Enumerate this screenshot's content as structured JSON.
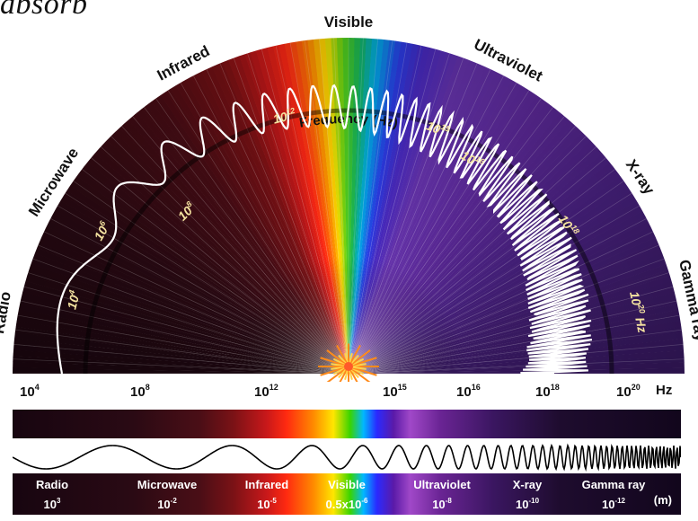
{
  "corner_text": "absorb",
  "arc": {
    "band_labels": [
      "Radio",
      "Microwave",
      "Infrared",
      "Visible",
      "Ultraviolet",
      "X-ray",
      "Gamma ray"
    ],
    "frequency_label": "Frequency (Hz)",
    "freq_marks": [
      {
        "base": "10",
        "exp": "4"
      },
      {
        "base": "10",
        "exp": "6"
      },
      {
        "base": "10",
        "exp": "8"
      },
      {
        "base": "10",
        "exp": "12"
      },
      {
        "base": "10",
        "exp": "15"
      },
      {
        "base": "10",
        "exp": "16"
      },
      {
        "base": "10",
        "exp": "18"
      },
      {
        "base": "10",
        "exp": "20"
      }
    ],
    "hz_suffix": "Hz"
  },
  "axis": {
    "ticks": [
      {
        "base": "10",
        "exp": "4"
      },
      {
        "base": "10",
        "exp": "8"
      },
      {
        "base": "10",
        "exp": "12"
      },
      {
        "base": "10",
        "exp": "15"
      },
      {
        "base": "10",
        "exp": "16"
      },
      {
        "base": "10",
        "exp": "18"
      },
      {
        "base": "10",
        "exp": "20"
      }
    ],
    "unit": "Hz"
  },
  "bottom_bar": {
    "cells": [
      {
        "name": "Radio",
        "base": "10",
        "exp": "3"
      },
      {
        "name": "Microwave",
        "base": "10",
        "exp": "-2"
      },
      {
        "name": "Infrared",
        "base": "10",
        "exp": "-5"
      },
      {
        "name": "Visible",
        "base": "0.5x10",
        "exp": "-6"
      },
      {
        "name": "Ultraviolet",
        "base": "10",
        "exp": "-8"
      },
      {
        "name": "X-ray",
        "base": "10",
        "exp": "-10"
      },
      {
        "name": "Gamma ray",
        "base": "10",
        "exp": "-12"
      }
    ],
    "unit": "(m)"
  },
  "colors": {
    "radio": "#2a0a14",
    "infrared": "#c8181a",
    "visible_yellow": "#ffe600",
    "visible_green": "#3ad400",
    "visible_blue": "#2a2aff",
    "ultraviolet": "#5a1aa8",
    "gamma": "#12061c",
    "label_text": "#ffffff",
    "curve": "#ffffff"
  }
}
